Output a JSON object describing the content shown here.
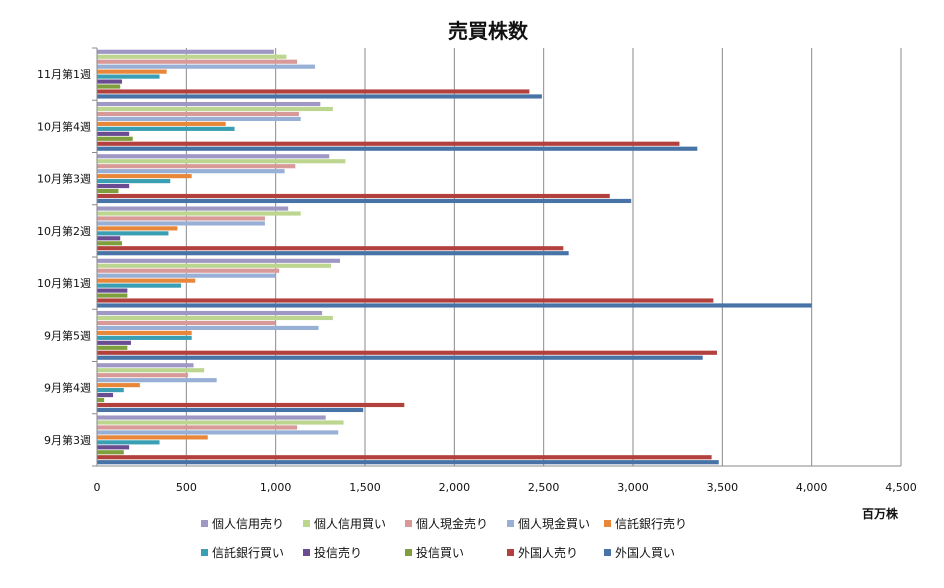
{
  "chart_data": {
    "type": "bar",
    "orientation": "horizontal",
    "title": "売買株数",
    "unit_label": "百万株",
    "categories": [
      "9月第3週",
      "9月第4週",
      "9月第5週",
      "10月第1週",
      "10月第2週",
      "10月第3週",
      "10月第4週",
      "11月第1週"
    ],
    "xlim": [
      0,
      4500
    ],
    "xticks": [
      0,
      500,
      1000,
      1500,
      2000,
      2500,
      3000,
      3500,
      4000,
      4500
    ],
    "xtick_labels": [
      "0",
      "500",
      "1,000",
      "1,500",
      "2,000",
      "2,500",
      "3,000",
      "3,500",
      "4,000",
      "4,500"
    ],
    "grid": "vertical",
    "legend_position": "bottom",
    "series": [
      {
        "name": "個人信用売り",
        "color": "#9f98c4",
        "values": [
          1280,
          540,
          1260,
          1360,
          1070,
          1300,
          1250,
          990
        ]
      },
      {
        "name": "個人信用買い",
        "color": "#bcd68f",
        "values": [
          1380,
          600,
          1320,
          1310,
          1140,
          1390,
          1320,
          1060
        ]
      },
      {
        "name": "個人現金売り",
        "color": "#d89a99",
        "values": [
          1120,
          510,
          1000,
          1020,
          940,
          1110,
          1130,
          1120
        ]
      },
      {
        "name": "個人現金買い",
        "color": "#99b0d6",
        "values": [
          1350,
          670,
          1240,
          1000,
          940,
          1050,
          1140,
          1220
        ]
      },
      {
        "name": "信託銀行売り",
        "color": "#e8873a",
        "values": [
          620,
          240,
          530,
          550,
          450,
          530,
          720,
          390
        ]
      },
      {
        "name": "信託銀行買い",
        "color": "#3a9fb3",
        "values": [
          350,
          150,
          530,
          470,
          400,
          410,
          770,
          350
        ]
      },
      {
        "name": "投信売り",
        "color": "#6a4c92",
        "values": [
          180,
          90,
          190,
          170,
          130,
          180,
          180,
          140
        ]
      },
      {
        "name": "投信買い",
        "color": "#7f9e3d",
        "values": [
          150,
          40,
          170,
          170,
          140,
          120,
          200,
          130
        ]
      },
      {
        "name": "外国人売り",
        "color": "#b2403d",
        "values": [
          3440,
          1720,
          3470,
          3450,
          2610,
          2870,
          3260,
          2420
        ]
      },
      {
        "name": "外国人買い",
        "color": "#4773a7",
        "values": [
          3480,
          1490,
          3390,
          4000,
          2640,
          2990,
          3360,
          2490
        ]
      }
    ]
  }
}
